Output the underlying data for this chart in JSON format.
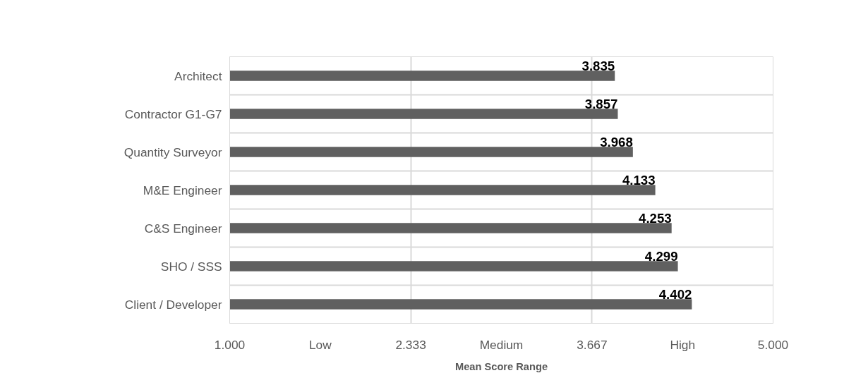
{
  "chart_data": {
    "type": "bar",
    "orientation": "horizontal",
    "xlabel": "Mean Score Range",
    "categories": [
      "Architect",
      "Contractor G1-G7",
      "Quantity Surveyor",
      "M&E Engineer",
      "C&S Engineer",
      "SHO / SSS",
      "Client / Developer"
    ],
    "values": [
      3.835,
      3.857,
      3.968,
      4.133,
      4.253,
      4.299,
      4.402
    ],
    "color": "#606060",
    "xlim": [
      1,
      5
    ],
    "xticks": [
      {
        "value": 1,
        "label": "1.000"
      },
      2.333,
      3.667,
      {
        "value": 5,
        "label": "5.000"
      }
    ],
    "annotations": [
      "Low",
      "Medium",
      "High"
    ],
    "data_labels": true,
    "grid": true
  }
}
